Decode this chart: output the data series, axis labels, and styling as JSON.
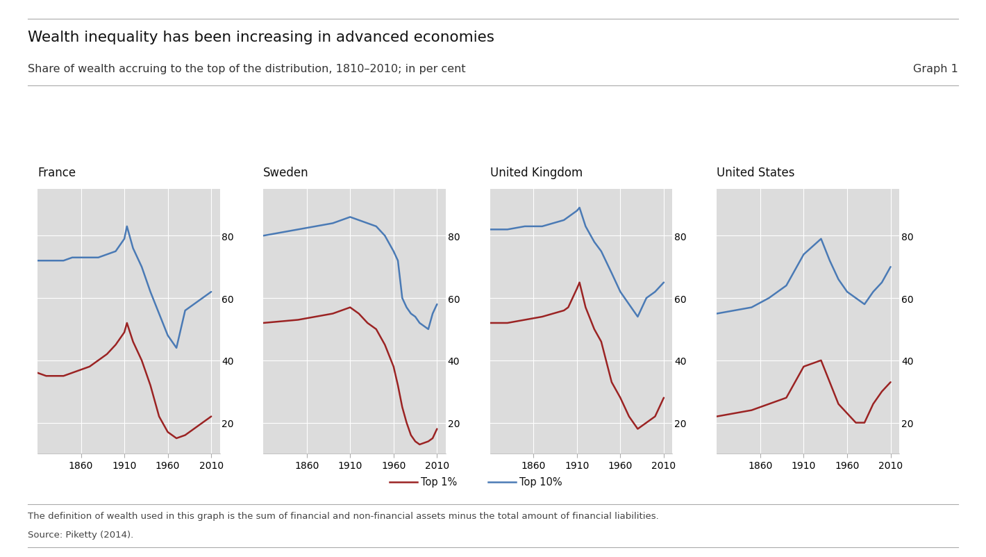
{
  "title": "Wealth inequality has been increasing in advanced economies",
  "subtitle": "Share of wealth accruing to the top of the distribution, 1810–2010; in per cent",
  "graph_label": "Graph 1",
  "footnote": "The definition of wealth used in this graph is the sum of financial and non-financial assets minus the total amount of financial liabilities.",
  "source": "Source: Piketty (2014).",
  "background_color": "#ffffff",
  "panel_bg_color": "#dcdcdc",
  "grid_color": "#ffffff",
  "blue_color": "#4a7ab5",
  "red_color": "#9b2323",
  "countries": [
    "France",
    "Sweden",
    "United Kingdom",
    "United States"
  ],
  "ylim": [
    10,
    95
  ],
  "yticks": [
    20,
    40,
    60,
    80
  ],
  "xticks": [
    1860,
    1910,
    1960,
    2010
  ],
  "france_top10_x": [
    1810,
    1820,
    1830,
    1840,
    1850,
    1860,
    1870,
    1880,
    1890,
    1900,
    1910,
    1913,
    1920,
    1930,
    1940,
    1950,
    1960,
    1970,
    1980,
    1990,
    2000,
    2010
  ],
  "france_top10_y": [
    72,
    72,
    72,
    72,
    73,
    73,
    73,
    73,
    74,
    75,
    79,
    83,
    76,
    70,
    62,
    55,
    48,
    44,
    56,
    58,
    60,
    62
  ],
  "france_top1_x": [
    1810,
    1820,
    1830,
    1840,
    1850,
    1860,
    1870,
    1880,
    1890,
    1900,
    1910,
    1913,
    1920,
    1930,
    1940,
    1950,
    1960,
    1970,
    1980,
    1990,
    2000,
    2010
  ],
  "france_top1_y": [
    36,
    35,
    35,
    35,
    36,
    37,
    38,
    40,
    42,
    45,
    49,
    52,
    46,
    40,
    32,
    22,
    17,
    15,
    16,
    18,
    20,
    22
  ],
  "sweden_top10_x": [
    1810,
    1850,
    1870,
    1890,
    1900,
    1910,
    1920,
    1930,
    1940,
    1950,
    1960,
    1965,
    1970,
    1975,
    1980,
    1985,
    1990,
    2000,
    2005,
    2010
  ],
  "sweden_top10_y": [
    80,
    82,
    83,
    84,
    85,
    86,
    85,
    84,
    83,
    80,
    75,
    72,
    60,
    57,
    55,
    54,
    52,
    50,
    55,
    58
  ],
  "sweden_top1_x": [
    1810,
    1850,
    1870,
    1890,
    1900,
    1910,
    1920,
    1930,
    1940,
    1950,
    1960,
    1965,
    1970,
    1975,
    1980,
    1985,
    1990,
    2000,
    2005,
    2010
  ],
  "sweden_top1_y": [
    52,
    53,
    54,
    55,
    56,
    57,
    55,
    52,
    50,
    45,
    38,
    32,
    25,
    20,
    16,
    14,
    13,
    14,
    15,
    18
  ],
  "uk_top10_x": [
    1810,
    1820,
    1830,
    1850,
    1870,
    1895,
    1900,
    1910,
    1913,
    1920,
    1930,
    1938,
    1950,
    1960,
    1970,
    1980,
    1990,
    2000,
    2010
  ],
  "uk_top10_y": [
    82,
    82,
    82,
    83,
    83,
    85,
    86,
    88,
    89,
    83,
    78,
    75,
    68,
    62,
    58,
    54,
    60,
    62,
    65
  ],
  "uk_top1_x": [
    1810,
    1820,
    1830,
    1850,
    1870,
    1895,
    1900,
    1910,
    1913,
    1920,
    1930,
    1938,
    1950,
    1960,
    1970,
    1980,
    1990,
    2000,
    2010
  ],
  "uk_top1_y": [
    52,
    52,
    52,
    53,
    54,
    56,
    57,
    63,
    65,
    57,
    50,
    46,
    33,
    28,
    22,
    18,
    20,
    22,
    28
  ],
  "us_top10_x": [
    1810,
    1850,
    1870,
    1890,
    1910,
    1930,
    1940,
    1950,
    1960,
    1970,
    1980,
    1990,
    2000,
    2010
  ],
  "us_top10_y": [
    55,
    57,
    60,
    64,
    74,
    79,
    72,
    66,
    62,
    60,
    58,
    62,
    65,
    70
  ],
  "us_top1_x": [
    1810,
    1850,
    1870,
    1890,
    1910,
    1930,
    1940,
    1950,
    1960,
    1970,
    1980,
    1990,
    2000,
    2010
  ],
  "us_top1_y": [
    22,
    24,
    26,
    28,
    38,
    40,
    33,
    26,
    23,
    20,
    20,
    26,
    30,
    33
  ]
}
